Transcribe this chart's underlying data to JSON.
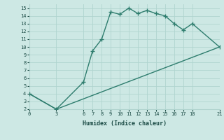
{
  "xlabel": "Humidex (Indice chaleur)",
  "line1_x": [
    0,
    3,
    6,
    7,
    8,
    9,
    10,
    11,
    12,
    13,
    14,
    15,
    16,
    17,
    18,
    21
  ],
  "line1_y": [
    4,
    2,
    5.5,
    9.5,
    11,
    14.5,
    14.2,
    15,
    14.3,
    14.7,
    14.3,
    14.0,
    13.0,
    12.2,
    13.0,
    10
  ],
  "line2_x": [
    0,
    3,
    21
  ],
  "line2_y": [
    4,
    2,
    10
  ],
  "color": "#2e7d6e",
  "bg_color": "#cde8e4",
  "grid_color": "#b0d4cf",
  "xlim": [
    0,
    21
  ],
  "ylim": [
    2,
    15.5
  ],
  "xticks": [
    0,
    3,
    6,
    7,
    8,
    9,
    10,
    11,
    12,
    13,
    14,
    15,
    16,
    17,
    18,
    21
  ],
  "yticks": [
    2,
    3,
    4,
    5,
    6,
    7,
    8,
    9,
    10,
    11,
    12,
    13,
    14,
    15
  ],
  "marker": "+",
  "markersize": 5,
  "linewidth": 1.0
}
